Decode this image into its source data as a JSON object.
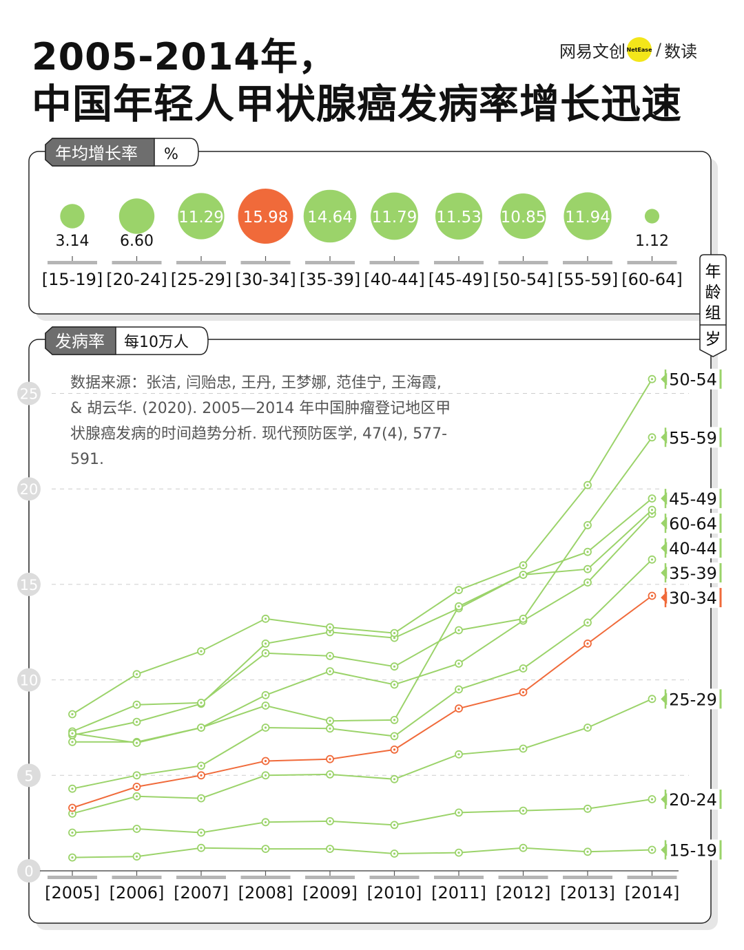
{
  "title_line1": "2005-2014年，",
  "title_line2": "中国年轻人甲状腺癌发病率增长迅速",
  "logo": {
    "left": "网易文创",
    "badge": "NetEase",
    "sep": "/",
    "right": "数读"
  },
  "growth_panel": {
    "label": "年均增长率",
    "unit": "%",
    "side_label": [
      "年",
      "龄",
      "组",
      "岁"
    ]
  },
  "incidence_panel": {
    "label": "发病率",
    "unit": "每10万人"
  },
  "source_text": "数据来源：张洁, 闫贻忠, 王丹, 王梦娜, 范佳宁, 王海霞, & 胡云华. (2020). 2005—2014 年中国肿瘤登记地区甲状腺癌发病的时间趋势分析. 现代预防医学, 47(4), 577-591.",
  "colors": {
    "green": "#9bd36a",
    "orange": "#f06a3a",
    "highlight_group": "30-34"
  },
  "chart_data": [
    {
      "type": "bubble",
      "title": "年均增长率",
      "unit": "%",
      "categories": [
        "15-19",
        "20-24",
        "25-29",
        "30-34",
        "35-39",
        "40-44",
        "45-49",
        "50-54",
        "55-59",
        "60-64"
      ],
      "values": [
        3.14,
        6.6,
        11.29,
        15.98,
        14.64,
        11.79,
        11.53,
        10.85,
        11.94,
        1.12
      ],
      "labels": [
        "3.14",
        "6.60",
        "11.29",
        "15.98",
        "14.64",
        "11.79",
        "11.53",
        "10.85",
        "11.94",
        "1.12"
      ]
    },
    {
      "type": "line",
      "title": "发病率",
      "ylabel": "每10万人",
      "x": [
        "2005",
        "2006",
        "2007",
        "2008",
        "2009",
        "2010",
        "2011",
        "2012",
        "2013",
        "2014"
      ],
      "yticks": [
        0,
        5,
        10,
        15,
        20,
        25
      ],
      "ylim": [
        0,
        27
      ],
      "grid": true,
      "series": [
        {
          "name": "15-19",
          "values": [
            0.7,
            0.75,
            1.2,
            1.15,
            1.15,
            0.9,
            0.95,
            1.2,
            1.0,
            1.1
          ]
        },
        {
          "name": "20-24",
          "values": [
            2.0,
            2.2,
            2.0,
            2.55,
            2.6,
            2.4,
            3.05,
            3.15,
            3.25,
            3.75
          ]
        },
        {
          "name": "25-29",
          "values": [
            3.0,
            3.9,
            3.8,
            5.0,
            5.05,
            4.8,
            6.1,
            6.4,
            7.5,
            9.0
          ]
        },
        {
          "name": "30-34",
          "values": [
            3.3,
            4.4,
            5.0,
            5.75,
            5.85,
            6.35,
            8.5,
            9.35,
            11.9,
            14.4
          ]
        },
        {
          "name": "35-39",
          "values": [
            4.3,
            5.0,
            5.5,
            7.5,
            7.45,
            7.05,
            9.5,
            10.6,
            13.0,
            16.3
          ]
        },
        {
          "name": "40-44",
          "values": [
            6.75,
            6.75,
            7.5,
            9.2,
            10.45,
            9.75,
            10.85,
            13.1,
            15.1,
            18.7
          ]
        },
        {
          "name": "45-49",
          "values": [
            7.1,
            7.8,
            8.75,
            11.9,
            12.5,
            12.2,
            13.75,
            15.5,
            16.7,
            19.5
          ]
        },
        {
          "name": "50-54",
          "values": [
            8.2,
            10.3,
            11.5,
            13.2,
            12.75,
            12.45,
            14.7,
            16.0,
            20.2,
            25.75
          ]
        },
        {
          "name": "55-59",
          "values": [
            7.3,
            8.7,
            8.8,
            11.4,
            11.25,
            10.7,
            12.6,
            13.2,
            18.1,
            22.7
          ]
        },
        {
          "name": "60-64",
          "values": [
            7.2,
            6.7,
            7.5,
            8.65,
            7.85,
            7.9,
            13.85,
            15.5,
            15.8,
            18.9
          ]
        }
      ]
    }
  ]
}
